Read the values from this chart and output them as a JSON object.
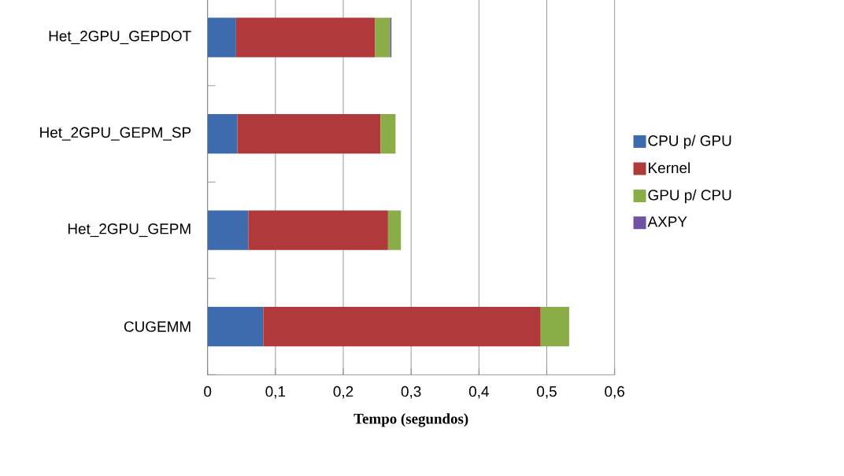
{
  "chart_data": {
    "type": "bar",
    "orientation": "horizontal",
    "stacked": true,
    "categories": [
      "Het_2GPU_GEPDOT",
      "Het_2GPU_GEPM_SP",
      "Het_2GPU_GEPM",
      "CUGEMM"
    ],
    "series": [
      {
        "name": "CPU p/ GPU",
        "color": "#3e6bae",
        "values": [
          0.042,
          0.044,
          0.06,
          0.082
        ]
      },
      {
        "name": "Kernel",
        "color": "#b0393b",
        "values": [
          0.205,
          0.211,
          0.206,
          0.409
        ]
      },
      {
        "name": "GPU p/ CPU",
        "color": "#8bad47",
        "values": [
          0.022,
          0.022,
          0.019,
          0.042
        ]
      },
      {
        "name": "AXPY",
        "color": "#6f52a0",
        "values": [
          0.002,
          null,
          null,
          null
        ]
      }
    ],
    "xlabel": "Tempo  (segundos)",
    "xlim": [
      0,
      0.6
    ],
    "xticks": [
      {
        "value": 0,
        "label": "0"
      },
      {
        "value": 0.1,
        "label": "0,1"
      },
      {
        "value": 0.2,
        "label": "0,2"
      },
      {
        "value": 0.3,
        "label": "0,3"
      },
      {
        "value": 0.4,
        "label": "0,4"
      },
      {
        "value": 0.5,
        "label": "0,5"
      },
      {
        "value": 0.6,
        "label": "0,6"
      }
    ],
    "grid": "x",
    "legend": "right"
  }
}
